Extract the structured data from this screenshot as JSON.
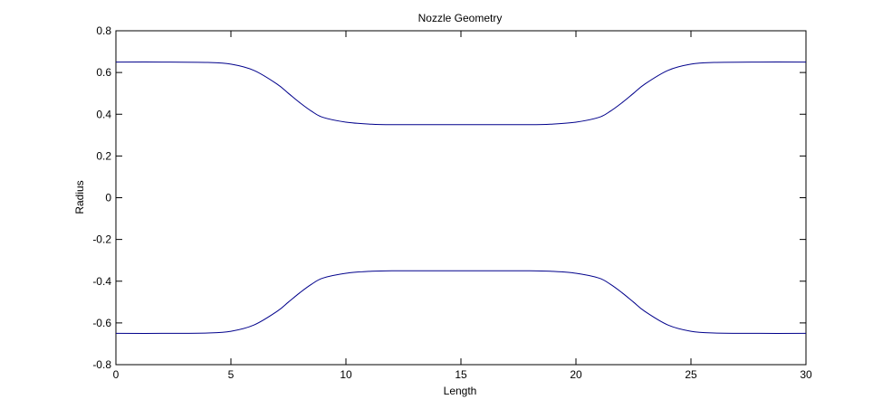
{
  "chart_data": {
    "type": "line",
    "title": "Nozzle Geometry",
    "xlabel": "Length",
    "ylabel": "Radius",
    "xlim": [
      0,
      30
    ],
    "ylim": [
      -0.8,
      0.8
    ],
    "xticks": [
      0,
      5,
      10,
      15,
      20,
      25,
      30
    ],
    "yticks": [
      -0.8,
      -0.6,
      -0.4,
      -0.2,
      0,
      0.2,
      0.4,
      0.6,
      0.8
    ],
    "grid": false,
    "line_color": "#00008b",
    "series": [
      {
        "x": [
          0,
          2,
          4,
          5,
          6,
          7,
          7.5,
          8,
          8.5,
          9,
          10,
          11,
          12,
          15,
          18,
          19,
          20,
          21,
          21.5,
          22,
          22.5,
          23,
          24,
          25,
          26,
          28,
          30
        ],
        "y": [
          0.65,
          0.65,
          0.648,
          0.64,
          0.61,
          0.545,
          0.5,
          0.455,
          0.415,
          0.385,
          0.362,
          0.353,
          0.35,
          0.35,
          0.35,
          0.353,
          0.362,
          0.385,
          0.415,
          0.455,
          0.5,
          0.545,
          0.61,
          0.64,
          0.648,
          0.65,
          0.65
        ]
      },
      {
        "x": [
          0,
          2,
          4,
          5,
          6,
          7,
          7.5,
          8,
          8.5,
          9,
          10,
          11,
          12,
          15,
          18,
          19,
          20,
          21,
          21.5,
          22,
          22.5,
          23,
          24,
          25,
          26,
          28,
          30
        ],
        "y": [
          -0.65,
          -0.65,
          -0.648,
          -0.64,
          -0.61,
          -0.545,
          -0.5,
          -0.455,
          -0.415,
          -0.385,
          -0.362,
          -0.353,
          -0.35,
          -0.35,
          -0.35,
          -0.353,
          -0.362,
          -0.385,
          -0.415,
          -0.455,
          -0.5,
          -0.545,
          -0.61,
          -0.64,
          -0.648,
          -0.65,
          -0.65
        ]
      }
    ]
  }
}
